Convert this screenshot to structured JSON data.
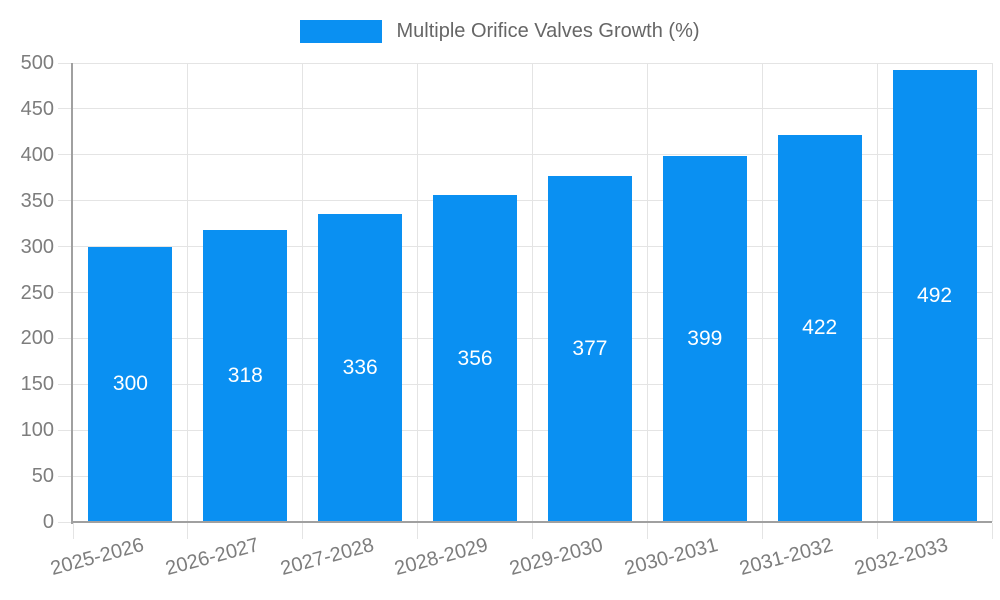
{
  "chart_data": {
    "type": "bar",
    "title": "",
    "legend": {
      "label": "Multiple Orifice Valves Growth (%)",
      "position": "top"
    },
    "categories": [
      "2025-2026",
      "2026-2027",
      "2027-2028",
      "2028-2029",
      "2029-2030",
      "2030-2031",
      "2031-2032",
      "2032-2033"
    ],
    "series": [
      {
        "name": "Multiple Orifice Valves Growth (%)",
        "values": [
          300,
          318,
          336,
          356,
          377,
          399,
          422,
          492
        ]
      }
    ],
    "value_labels": [
      "300",
      "318",
      "336",
      "356",
      "377",
      "399",
      "422",
      "492"
    ],
    "xlabel": "",
    "ylabel": "",
    "ylim": [
      0,
      500
    ],
    "ytick_step": 50,
    "yticks": [
      0,
      50,
      100,
      150,
      200,
      250,
      300,
      350,
      400,
      450,
      500
    ],
    "grid": true,
    "x_label_rotation_deg": -15,
    "colors": {
      "bar": "#0A90F2",
      "bar_value_text": "#ffffff",
      "grid": "#e4e4e4",
      "axis": "#a0a0a0",
      "tick_text": "#7d7d7d",
      "legend_text": "#666666"
    }
  }
}
